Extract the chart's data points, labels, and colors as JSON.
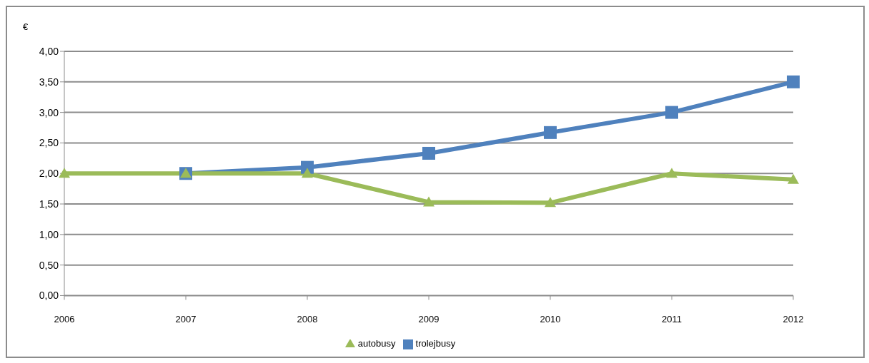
{
  "chart_data": {
    "type": "line",
    "ylabel": "€",
    "categories": [
      "2006",
      "2007",
      "2008",
      "2009",
      "2010",
      "2011",
      "2012"
    ],
    "series": [
      {
        "name": "trolejbusy",
        "color": "#4f81bd",
        "marker": "square",
        "values": [
          null,
          2.0,
          2.1,
          2.33,
          2.67,
          3.0,
          3.5
        ]
      },
      {
        "name": "autobusy",
        "color": "#9bbb59",
        "marker": "triangle",
        "values": [
          2.0,
          2.0,
          2.0,
          1.53,
          1.52,
          2.0,
          1.9
        ]
      }
    ],
    "ylim": [
      0,
      4
    ],
    "yticks": [
      {
        "value": 0,
        "label": "0,00"
      },
      {
        "value": 0.5,
        "label": "0,50"
      },
      {
        "value": 1,
        "label": "1,00"
      },
      {
        "value": 1.5,
        "label": "1,50"
      },
      {
        "value": 2,
        "label": "2,00"
      },
      {
        "value": 2.5,
        "label": "2,50"
      },
      {
        "value": 3,
        "label": "3,00"
      },
      {
        "value": 3.5,
        "label": "3,50"
      },
      {
        "value": 4,
        "label": "4,00"
      }
    ],
    "grid": "y",
    "legend": "bottom"
  }
}
